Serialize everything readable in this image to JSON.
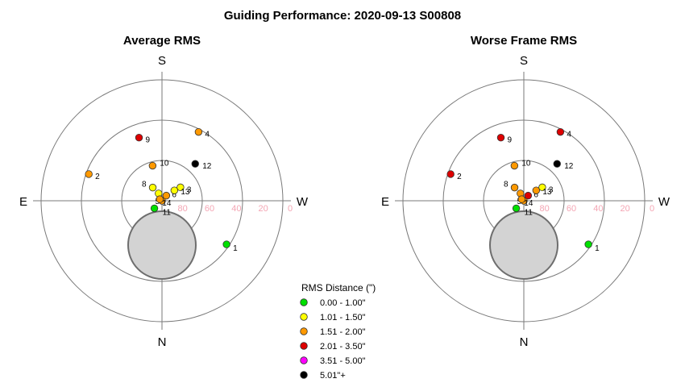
{
  "title": "Guiding Performance: 2020-09-13 S00808",
  "compass_labels": {
    "top": "S",
    "bottom": "N",
    "left": "E",
    "right": "W"
  },
  "altitude_ticks": [
    "80",
    "60",
    "40",
    "20",
    "0"
  ],
  "legend": {
    "title": "RMS Distance (\")",
    "items": [
      {
        "label": "0.00 - 1.00\"",
        "color": "#00e000"
      },
      {
        "label": "1.01 - 1.50\"",
        "color": "#ffff00"
      },
      {
        "label": "1.51 - 2.00\"",
        "color": "#ff9900"
      },
      {
        "label": "2.01 - 3.50\"",
        "color": "#dd0000"
      },
      {
        "label": "3.51 - 5.00\"",
        "color": "#ff00ff"
      },
      {
        "label": "5.01\"+",
        "color": "#000000"
      }
    ]
  },
  "chart_data": [
    {
      "type": "scatter",
      "subtype": "polar-sky-plot",
      "title": "Average RMS",
      "points": [
        {
          "label": "1",
          "alt": 32,
          "az": 304,
          "rms_class": 0
        },
        {
          "label": "2",
          "alt": 32,
          "az": 110,
          "rms_class": 2
        },
        {
          "label": "3",
          "alt": 73,
          "az": 234,
          "rms_class": 1
        },
        {
          "label": "4",
          "alt": 32,
          "az": 208,
          "rms_class": 2
        },
        {
          "label": "5",
          "alt": 90,
          "az": 0,
          "rms_class": 2
        },
        {
          "label": "6",
          "alt": 85,
          "az": 220,
          "rms_class": 2
        },
        {
          "label": "7",
          "alt": 84,
          "az": 155,
          "rms_class": 1
        },
        {
          "label": "8",
          "alt": 78,
          "az": 145,
          "rms_class": 1
        },
        {
          "label": "9",
          "alt": 40,
          "az": 160,
          "rms_class": 3
        },
        {
          "label": "10",
          "alt": 63,
          "az": 165,
          "rms_class": 2
        },
        {
          "label": "11",
          "alt": 82,
          "az": 45,
          "rms_class": 0
        },
        {
          "label": "12",
          "alt": 53,
          "az": 222,
          "rms_class": 5
        },
        {
          "label": "13",
          "alt": 78,
          "az": 230,
          "rms_class": 1
        },
        {
          "label": "14",
          "alt": 88,
          "az": 125,
          "rms_class": 2
        }
      ],
      "moon": {
        "alt": 57,
        "az": 0
      },
      "rlim_alt": [
        90,
        0
      ]
    },
    {
      "type": "scatter",
      "subtype": "polar-sky-plot",
      "title": "Worse Frame RMS",
      "points": [
        {
          "label": "1",
          "alt": 32,
          "az": 304,
          "rms_class": 0
        },
        {
          "label": "2",
          "alt": 32,
          "az": 110,
          "rms_class": 3
        },
        {
          "label": "3",
          "alt": 73,
          "az": 234,
          "rms_class": 1
        },
        {
          "label": "4",
          "alt": 32,
          "az": 208,
          "rms_class": 3
        },
        {
          "label": "5",
          "alt": 90,
          "az": 0,
          "rms_class": 2
        },
        {
          "label": "6",
          "alt": 85,
          "az": 220,
          "rms_class": 3
        },
        {
          "label": "7",
          "alt": 84,
          "az": 155,
          "rms_class": 2
        },
        {
          "label": "8",
          "alt": 78,
          "az": 145,
          "rms_class": 2
        },
        {
          "label": "9",
          "alt": 40,
          "az": 160,
          "rms_class": 3
        },
        {
          "label": "10",
          "alt": 63,
          "az": 165,
          "rms_class": 2
        },
        {
          "label": "11",
          "alt": 82,
          "az": 45,
          "rms_class": 0
        },
        {
          "label": "12",
          "alt": 53,
          "az": 222,
          "rms_class": 5
        },
        {
          "label": "13",
          "alt": 78,
          "az": 230,
          "rms_class": 2
        },
        {
          "label": "14",
          "alt": 88,
          "az": 125,
          "rms_class": 2
        }
      ],
      "moon": {
        "alt": 57,
        "az": 0
      },
      "rlim_alt": [
        90,
        0
      ]
    }
  ]
}
